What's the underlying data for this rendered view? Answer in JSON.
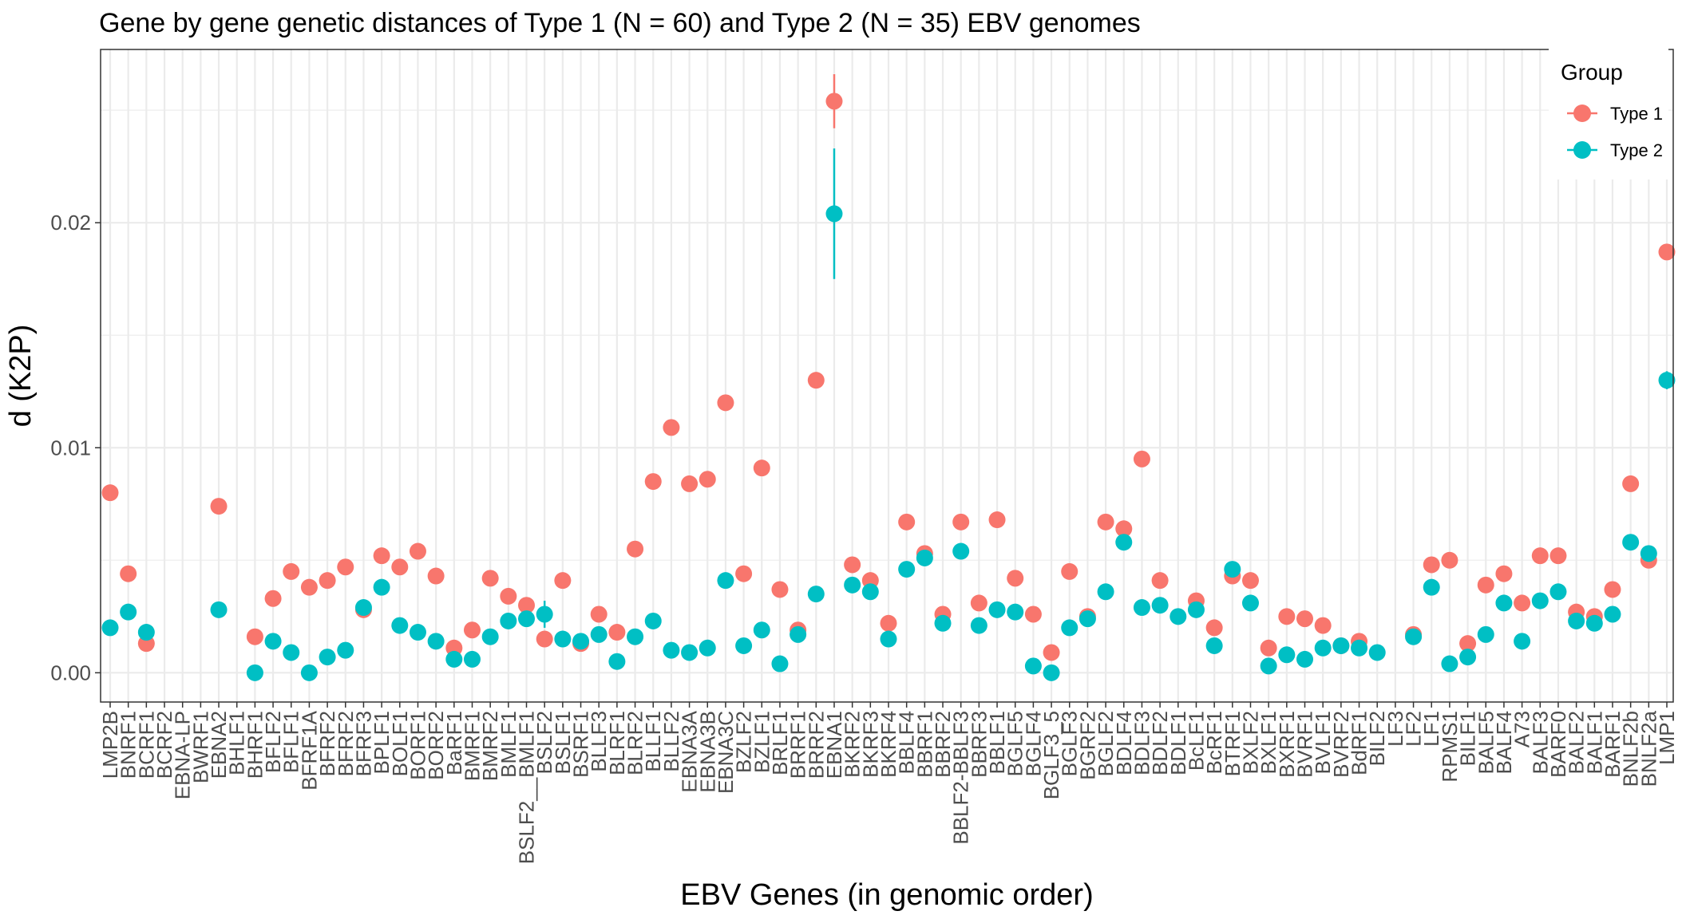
{
  "chart_data": {
    "type": "scatter",
    "title": "Gene by gene genetic distances of Type 1 (N = 60) and Type 2 (N = 35) EBV genomes",
    "xlabel": "EBV Genes (in genomic order)",
    "ylabel": "d (K2P)",
    "ylim": [
      -0.0013,
      0.0277
    ],
    "yticks": [
      0.0,
      0.01,
      0.02
    ],
    "ytick_labels": [
      "0.00",
      "0.01",
      "0.02"
    ],
    "grid": true,
    "legend": {
      "title": "Group",
      "position": "top-right"
    },
    "categories": [
      "LMP2B",
      "BNRF1",
      "BCRF1",
      "BCRF2",
      "EBNA-LP",
      "BWRF1",
      "EBNA2",
      "BHLF1",
      "BHRF1",
      "BFLF2",
      "BFLF1",
      "BFRF1A",
      "BFRF2",
      "BFRF2",
      "BFRF3",
      "BPLF1",
      "BOLF1",
      "BORF1",
      "BORF2",
      "BaRF1",
      "BMRF1",
      "BMRF2",
      "BMLF1",
      "BSLF2__BMLF1",
      "BSLF2",
      "BSLF1",
      "BSRF1",
      "BLLF3",
      "BLRF1",
      "BLRF2",
      "BLLF1",
      "BLLF2",
      "EBNA3A",
      "EBNA3B",
      "EBNA3C",
      "BZLF2",
      "BZLF1",
      "BRLF1",
      "BRRF1",
      "BRRF2",
      "EBNA1",
      "BKRF2",
      "BKRF3",
      "BKRF4",
      "BBLF4",
      "BBRF1",
      "BBRF2",
      "BBLF2-BBLF3",
      "BBRF3",
      "BBLF1",
      "BGLF5",
      "BGLF4",
      "BGLF3_5",
      "BGLF3",
      "BGRF2",
      "BGLF2",
      "BDLF4",
      "BDLF3",
      "BDLF2",
      "BDLF1",
      "BcLF1",
      "BcRF1",
      "BTRF1",
      "BXLF2",
      "BXLF1",
      "BXRF1",
      "BVRF1",
      "BVLF1",
      "BVRF2",
      "BdRF1",
      "BILF2",
      "LF3",
      "LF2",
      "LF1",
      "RPMS1",
      "BILF1",
      "BALF5",
      "BALF4",
      "A73",
      "BALF3",
      "BARF0",
      "BALF2",
      "BALF1",
      "BARF1",
      "BNLF2b",
      "BNLF2a",
      "LMP1"
    ],
    "series": [
      {
        "name": "Type 1",
        "color": "#F8766D",
        "values": [
          0.008,
          0.0044,
          0.0013,
          null,
          null,
          null,
          0.0074,
          null,
          0.0016,
          0.0033,
          0.0045,
          0.0038,
          0.0041,
          0.0047,
          0.0028,
          0.0052,
          0.0047,
          0.0054,
          0.0043,
          0.0011,
          0.0019,
          0.0042,
          0.0034,
          0.003,
          0.0015,
          0.0041,
          0.0013,
          0.0026,
          0.0018,
          0.0055,
          0.0085,
          0.0109,
          0.0084,
          0.0086,
          0.012,
          0.0044,
          0.0091,
          0.0037,
          0.0019,
          0.013,
          0.0254,
          0.0048,
          0.0041,
          0.0022,
          0.0067,
          0.0053,
          0.0026,
          0.0067,
          0.0031,
          0.0068,
          0.0042,
          0.0026,
          0.0009,
          0.0045,
          0.0025,
          0.0067,
          0.0064,
          0.0095,
          0.0041,
          null,
          0.0032,
          0.002,
          0.0043,
          0.0041,
          0.0011,
          0.0025,
          0.0024,
          0.0021,
          0.0012,
          0.0014,
          null,
          null,
          0.0017,
          0.0048,
          0.005,
          0.0013,
          0.0039,
          0.0044,
          0.0031,
          0.0052,
          0.0052,
          0.0027,
          0.0025,
          0.0037,
          0.0084,
          0.005,
          0.0187
        ],
        "error": [
          null,
          null,
          null,
          null,
          null,
          null,
          null,
          null,
          null,
          null,
          null,
          null,
          null,
          null,
          null,
          null,
          null,
          null,
          null,
          null,
          null,
          null,
          null,
          null,
          null,
          null,
          null,
          null,
          null,
          null,
          null,
          null,
          null,
          null,
          null,
          null,
          null,
          null,
          null,
          null,
          0.0012,
          null,
          null,
          null,
          null,
          null,
          null,
          null,
          null,
          null,
          null,
          null,
          null,
          null,
          null,
          null,
          null,
          null,
          null,
          null,
          null,
          null,
          null,
          null,
          null,
          null,
          null,
          null,
          null,
          null,
          null,
          null,
          null,
          null,
          null,
          null,
          null,
          null,
          null,
          null,
          null,
          null,
          null,
          null,
          null,
          null,
          null
        ]
      },
      {
        "name": "Type 2",
        "color": "#00BFC4",
        "values": [
          0.002,
          0.0027,
          0.0018,
          null,
          null,
          null,
          0.0028,
          null,
          0.0,
          0.0014,
          0.0009,
          0.0,
          0.0007,
          0.001,
          0.0029,
          0.0038,
          0.0021,
          0.0018,
          0.0014,
          0.0006,
          0.0006,
          0.0016,
          0.0023,
          0.0024,
          0.0026,
          0.0015,
          0.0014,
          0.0017,
          0.0005,
          0.0016,
          0.0023,
          0.001,
          0.0009,
          0.0011,
          0.0041,
          0.0012,
          0.0019,
          0.0004,
          0.0017,
          0.0035,
          0.0204,
          0.0039,
          0.0036,
          0.0015,
          0.0046,
          0.0051,
          0.0022,
          0.0054,
          0.0021,
          0.0028,
          0.0027,
          0.0003,
          0.0,
          0.002,
          0.0024,
          0.0036,
          0.0058,
          0.0029,
          0.003,
          0.0025,
          0.0028,
          0.0012,
          0.0046,
          0.0031,
          0.0003,
          0.0008,
          0.0006,
          0.0011,
          0.0012,
          0.0011,
          0.0009,
          null,
          0.0016,
          0.0038,
          0.0004,
          0.0007,
          0.0017,
          0.0031,
          0.0014,
          0.0032,
          0.0036,
          0.0023,
          0.0022,
          0.0026,
          0.0058,
          0.0053,
          0.013
        ],
        "error": [
          null,
          null,
          null,
          null,
          null,
          null,
          null,
          null,
          null,
          null,
          null,
          null,
          null,
          null,
          null,
          null,
          null,
          null,
          null,
          null,
          null,
          null,
          null,
          null,
          0.0006,
          null,
          null,
          null,
          null,
          null,
          null,
          null,
          null,
          null,
          null,
          null,
          null,
          null,
          null,
          null,
          0.0029,
          null,
          null,
          null,
          null,
          null,
          null,
          null,
          null,
          null,
          null,
          null,
          null,
          null,
          null,
          null,
          null,
          null,
          null,
          null,
          null,
          null,
          null,
          null,
          null,
          null,
          null,
          null,
          null,
          null,
          null,
          null,
          null,
          null,
          null,
          null,
          null,
          null,
          null,
          null,
          null,
          null,
          null,
          null,
          null,
          null,
          0.0004
        ]
      }
    ]
  }
}
